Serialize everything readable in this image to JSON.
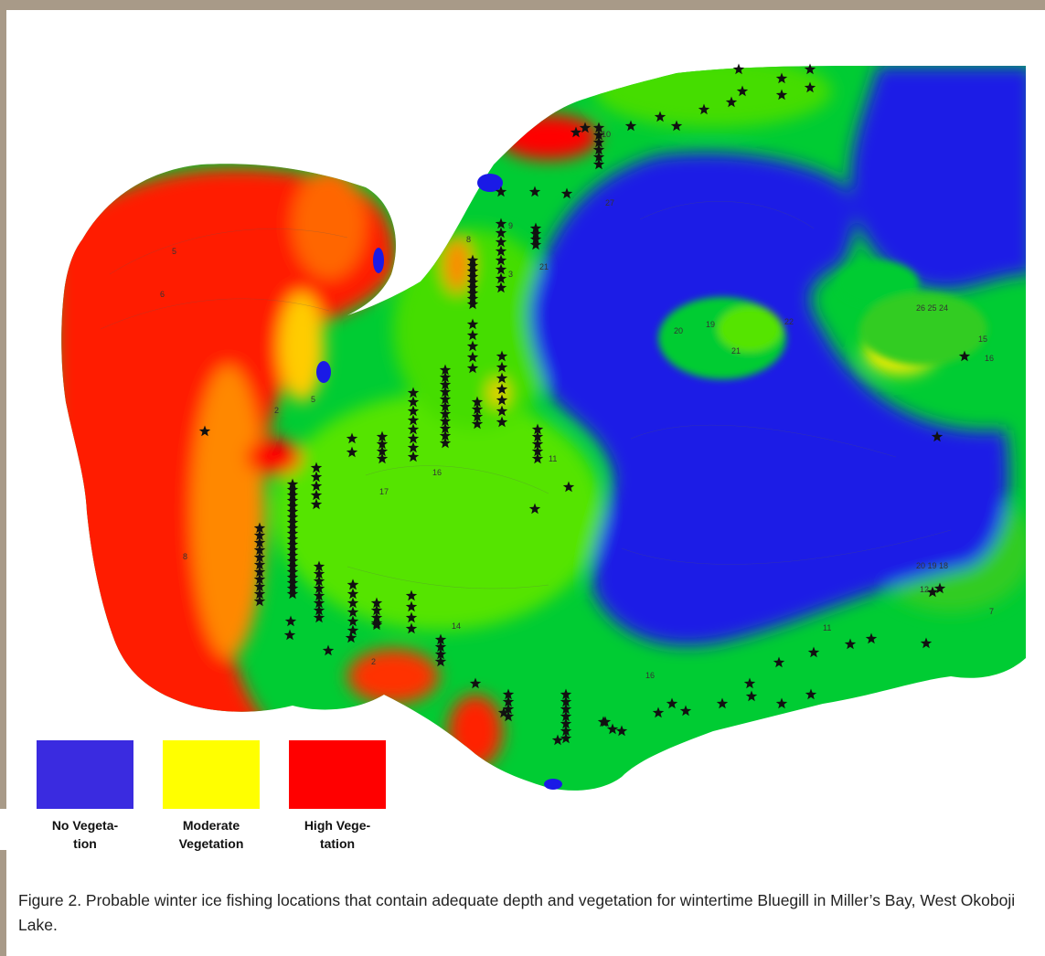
{
  "figure": {
    "caption": "Figure 2.  Probable winter ice fishing locations that contain adequate depth and vegetation for wintertime Bluegill in Miller’s Bay, West Okoboji Lake."
  },
  "legend": {
    "items": [
      {
        "label_line1": "No Vegeta-",
        "label_line2": "tion",
        "color": "#3a2be0"
      },
      {
        "label_line1": "Moderate",
        "label_line2": "Vegetation",
        "color": "#ffff00"
      },
      {
        "label_line1": "High Vege-",
        "label_line2": "tation",
        "color": "#ff0000"
      }
    ]
  },
  "map": {
    "colors": {
      "deep": "#1a1ae6",
      "low_veg": "#00cc33",
      "mid_veg": "#66ee00",
      "moderate": "#ffff00",
      "high": "#ff0000",
      "star": "#111111"
    },
    "contour_labels": [
      "5",
      "6",
      "2",
      "5",
      "8",
      "9",
      "3",
      "21",
      "27",
      "10",
      "20",
      "19",
      "22",
      "21",
      "15",
      "16",
      "17",
      "16",
      "11",
      "14",
      "2",
      "8",
      "16",
      "11",
      "20 19 18",
      "12",
      "7",
      "26 25 24"
    ]
  }
}
